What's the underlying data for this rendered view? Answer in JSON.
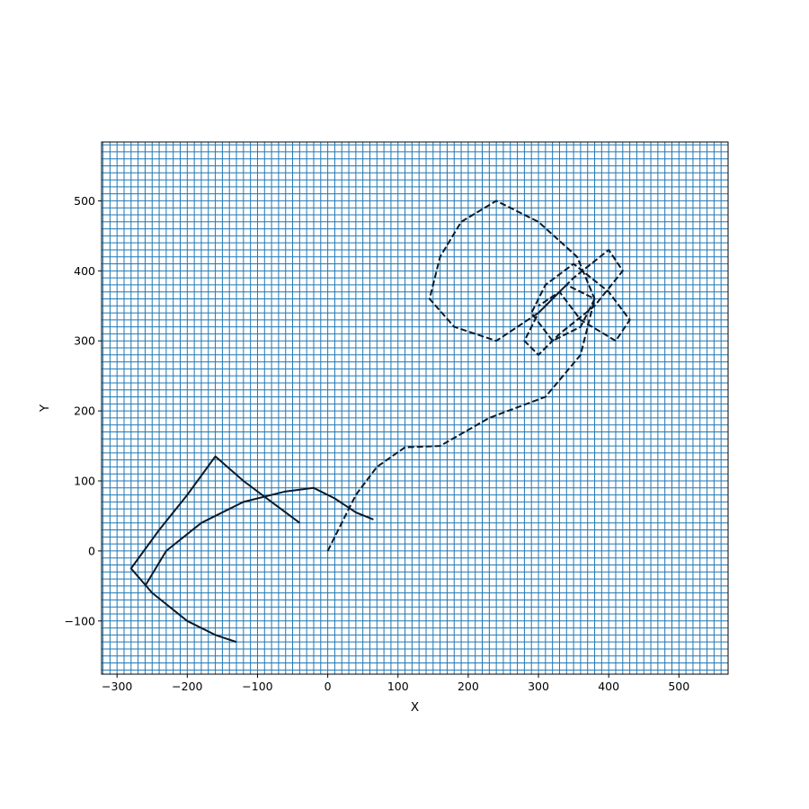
{
  "chart_data": {
    "type": "line",
    "title": "",
    "xlabel": "X",
    "ylabel": "Y",
    "xlim": [
      -322,
      570
    ],
    "ylim": [
      -176,
      584
    ],
    "xticks": [
      -300,
      -200,
      -100,
      0,
      100,
      200,
      300,
      400,
      500
    ],
    "xtick_labels": [
      "−300",
      "−200",
      "−100",
      "0",
      "100",
      "200",
      "300",
      "400",
      "500"
    ],
    "yticks": [
      -100,
      0,
      100,
      200,
      300,
      400,
      500
    ],
    "ytick_labels": [
      "−100",
      "0",
      "100",
      "200",
      "300",
      "400",
      "500"
    ],
    "grid": true,
    "grid_color": "#1f77b4",
    "line_color": "#0a1a2a",
    "series": [
      {
        "style": "dashed",
        "x": [
          0,
          20,
          40,
          70,
          110,
          160,
          230,
          310,
          360,
          380,
          355,
          300,
          240,
          190,
          160,
          145,
          180,
          240,
          300,
          350,
          400,
          420,
          380,
          330,
          300,
          280,
          300,
          340,
          380,
          360,
          320,
          290,
          310,
          350,
          400,
          430,
          410,
          360,
          330,
          300
        ],
        "y": [
          0,
          40,
          80,
          120,
          148,
          150,
          190,
          220,
          280,
          360,
          420,
          470,
          500,
          470,
          420,
          360,
          320,
          300,
          340,
          390,
          430,
          400,
          350,
          310,
          280,
          300,
          340,
          380,
          360,
          320,
          300,
          340,
          380,
          410,
          370,
          330,
          300,
          330,
          370,
          350
        ]
      },
      {
        "style": "solid",
        "x": [
          -40,
          -80,
          -120,
          -160,
          -200,
          -240,
          -280,
          -250,
          -200,
          -160,
          -130
        ],
        "y": [
          40,
          70,
          100,
          135,
          80,
          30,
          -25,
          -60,
          -100,
          -120,
          -130
        ]
      },
      {
        "style": "solid",
        "x": [
          -260,
          -230,
          -180,
          -120,
          -60,
          -20,
          10,
          40,
          65
        ],
        "y": [
          -50,
          0,
          40,
          70,
          85,
          90,
          75,
          55,
          45
        ]
      }
    ]
  }
}
